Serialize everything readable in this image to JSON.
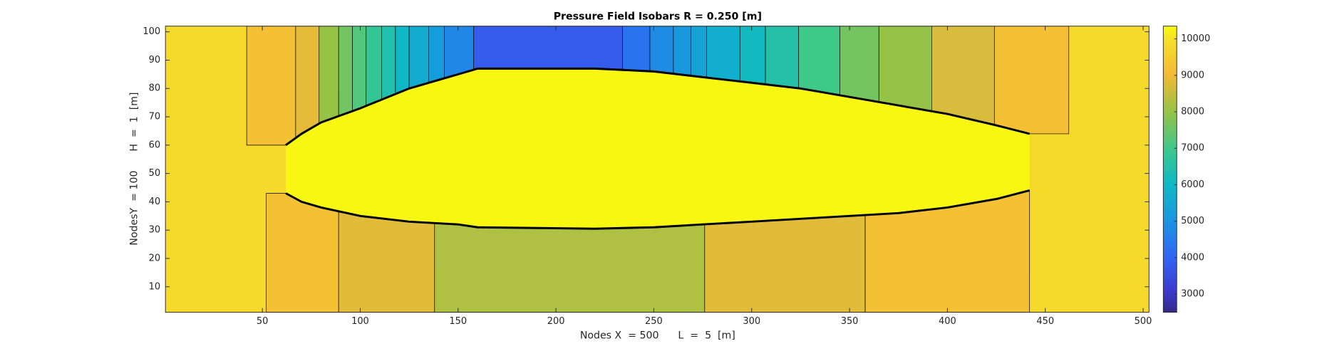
{
  "chart_data": {
    "type": "contourf",
    "title": "Pressure Field Isobars R = 0.250 [m]",
    "x_label": "Nodes X  = 500      L  =  5  [m]",
    "y_label": "NodesY  = 100      H  =  1  [m]",
    "xlim": [
      0.5,
      503
    ],
    "ylim": [
      1,
      102
    ],
    "xticks": [
      50,
      100,
      150,
      200,
      250,
      300,
      350,
      400,
      450,
      500
    ],
    "yticks": [
      10,
      20,
      30,
      40,
      50,
      60,
      70,
      80,
      90,
      100
    ],
    "colormap": "parula",
    "clim": [
      2500,
      10350
    ],
    "cticks": [
      3000,
      4000,
      5000,
      6000,
      7000,
      8000,
      9000,
      10000
    ],
    "background_value": 9800,
    "hull": {
      "value": 10300,
      "x": [
        62,
        70,
        80,
        100,
        125,
        150,
        160,
        220,
        250,
        275,
        300,
        325,
        350,
        375,
        400,
        425,
        442
      ],
      "upper": [
        60,
        64,
        68,
        73,
        80,
        85,
        87,
        87,
        86,
        84,
        82,
        80,
        77,
        74,
        71,
        67,
        64
      ],
      "lower": [
        43,
        40,
        38,
        35,
        33,
        32,
        31,
        30.5,
        31,
        32,
        33,
        34,
        35,
        36,
        38,
        41,
        44
      ]
    },
    "top_bands": [
      {
        "x": [
          42,
          67
        ],
        "value": 9200
      },
      {
        "x": [
          67,
          79
        ],
        "value": 8850
      },
      {
        "x": [
          79,
          89
        ],
        "value": 8000
      },
      {
        "x": [
          89,
          96
        ],
        "value": 7600
      },
      {
        "x": [
          96,
          103
        ],
        "value": 7200
      },
      {
        "x": [
          103,
          111
        ],
        "value": 6800
      },
      {
        "x": [
          111,
          118
        ],
        "value": 6400
      },
      {
        "x": [
          118,
          125
        ],
        "value": 6000
      },
      {
        "x": [
          125,
          135
        ],
        "value": 5600
      },
      {
        "x": [
          135,
          143
        ],
        "value": 5200
      },
      {
        "x": [
          143,
          158
        ],
        "value": 4700
      },
      {
        "x": [
          158,
          234
        ],
        "value": 3800
      },
      {
        "x": [
          234,
          248
        ],
        "value": 4300
      },
      {
        "x": [
          248,
          260
        ],
        "value": 4800
      },
      {
        "x": [
          260,
          269
        ],
        "value": 5100
      },
      {
        "x": [
          269,
          277
        ],
        "value": 5400
      },
      {
        "x": [
          277,
          294
        ],
        "value": 5700
      },
      {
        "x": [
          294,
          307
        ],
        "value": 6100
      },
      {
        "x": [
          307,
          324
        ],
        "value": 6500
      },
      {
        "x": [
          324,
          345
        ],
        "value": 7000
      },
      {
        "x": [
          345,
          365
        ],
        "value": 7600
      },
      {
        "x": [
          365,
          392
        ],
        "value": 8000
      },
      {
        "x": [
          392,
          424
        ],
        "value": 8700
      },
      {
        "x": [
          424,
          462
        ],
        "value": 9200
      }
    ],
    "bottom_bands": [
      {
        "x": [
          52,
          89
        ],
        "value": 9200
      },
      {
        "x": [
          89,
          138
        ],
        "value": 8800
      },
      {
        "x": [
          138,
          276
        ],
        "value": 8250
      },
      {
        "x": [
          276,
          358
        ],
        "value": 8800
      },
      {
        "x": [
          358,
          442
        ],
        "value": 9200
      }
    ]
  }
}
